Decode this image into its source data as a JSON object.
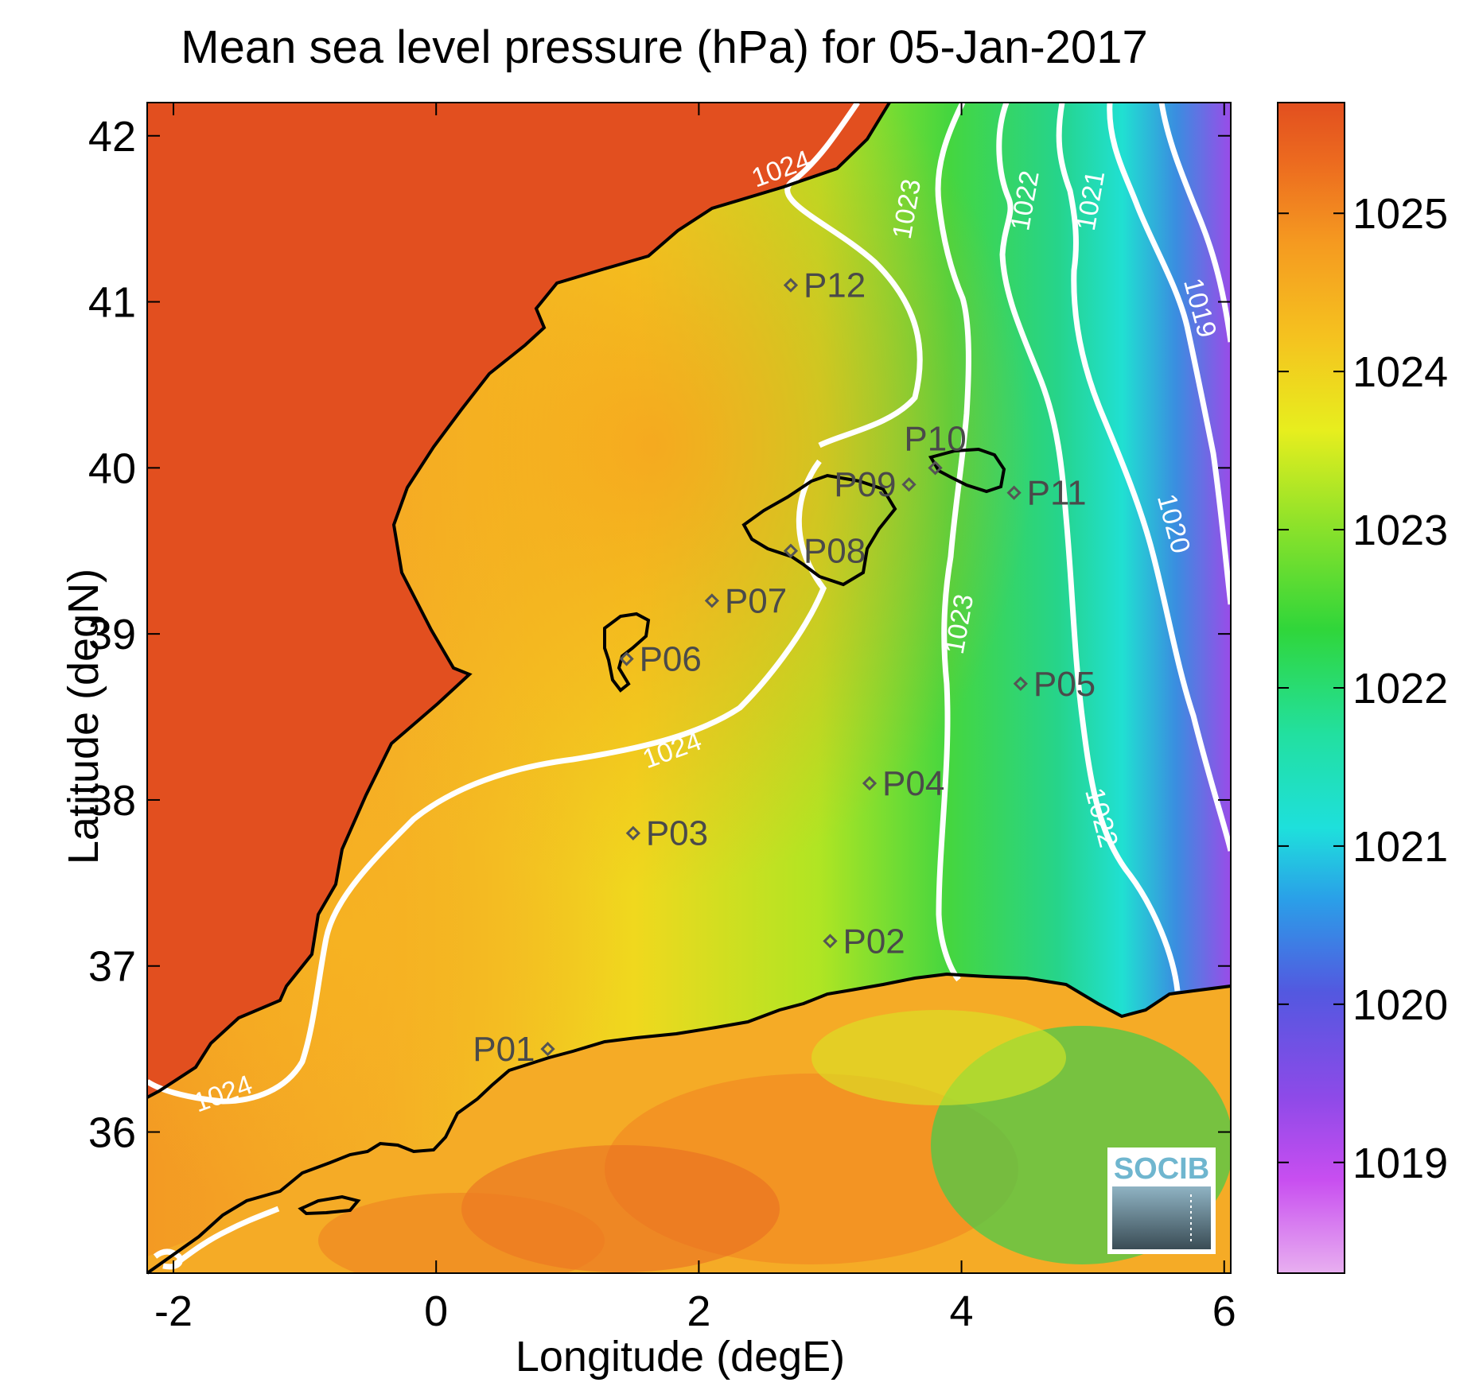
{
  "title": "Mean sea level pressure (hPa) for 05-Jan-2017",
  "chart_data": {
    "type": "heatmap",
    "title": "Mean sea level pressure (hPa) for 05-Jan-2017",
    "xlabel": "Longitude (degE)",
    "ylabel": "Latitude (degN)",
    "xlim": [
      -2.2,
      6.05
    ],
    "ylim": [
      35.15,
      42.2
    ],
    "x_ticks": [
      "-2",
      "0",
      "2",
      "4",
      "6"
    ],
    "y_ticks": [
      "36",
      "37",
      "38",
      "39",
      "40",
      "41",
      "42"
    ],
    "colorbar": {
      "range": [
        1018.3,
        1025.7
      ],
      "ticks": [
        "1019",
        "1020",
        "1021",
        "1022",
        "1023",
        "1024",
        "1025"
      ]
    },
    "contour_labels": [
      {
        "text": "1024",
        "lon": 2.65,
        "lat": 41.75
      },
      {
        "text": "1023",
        "lon": 3.65,
        "lat": 41.55
      },
      {
        "text": "1022",
        "lon": 4.55,
        "lat": 41.6
      },
      {
        "text": "1021",
        "lon": 5.05,
        "lat": 41.6
      },
      {
        "text": "1019",
        "lon": 5.75,
        "lat": 40.95
      },
      {
        "text": "1020",
        "lon": 5.55,
        "lat": 39.65
      },
      {
        "text": "1023",
        "lon": 4.05,
        "lat": 39.05
      },
      {
        "text": "1024",
        "lon": 1.82,
        "lat": 38.25
      },
      {
        "text": "1022",
        "lon": 5.0,
        "lat": 37.88
      },
      {
        "text": "1024",
        "lon": -1.6,
        "lat": 36.18
      }
    ],
    "stations": [
      {
        "name": "P01",
        "lon": 0.85,
        "lat": 36.5,
        "label_side": "left"
      },
      {
        "name": "P02",
        "lon": 3.0,
        "lat": 37.15,
        "label_side": "right"
      },
      {
        "name": "P03",
        "lon": 1.5,
        "lat": 37.8,
        "label_side": "right"
      },
      {
        "name": "P04",
        "lon": 3.3,
        "lat": 38.1,
        "label_side": "right"
      },
      {
        "name": "P05",
        "lon": 4.45,
        "lat": 38.7,
        "label_side": "right"
      },
      {
        "name": "P06",
        "lon": 1.45,
        "lat": 38.85,
        "label_side": "right"
      },
      {
        "name": "P07",
        "lon": 2.1,
        "lat": 39.2,
        "label_side": "right"
      },
      {
        "name": "P08",
        "lon": 2.7,
        "lat": 39.5,
        "label_side": "right"
      },
      {
        "name": "P09",
        "lon": 3.6,
        "lat": 39.9,
        "label_side": "left"
      },
      {
        "name": "P10",
        "lon": 3.8,
        "lat": 40.0,
        "label_side": "above"
      },
      {
        "name": "P11",
        "lon": 4.4,
        "lat": 39.85,
        "label_side": "right"
      },
      {
        "name": "P12",
        "lon": 2.7,
        "lat": 41.1,
        "label_side": "right"
      }
    ]
  },
  "logo": {
    "text": "SOCIB"
  }
}
